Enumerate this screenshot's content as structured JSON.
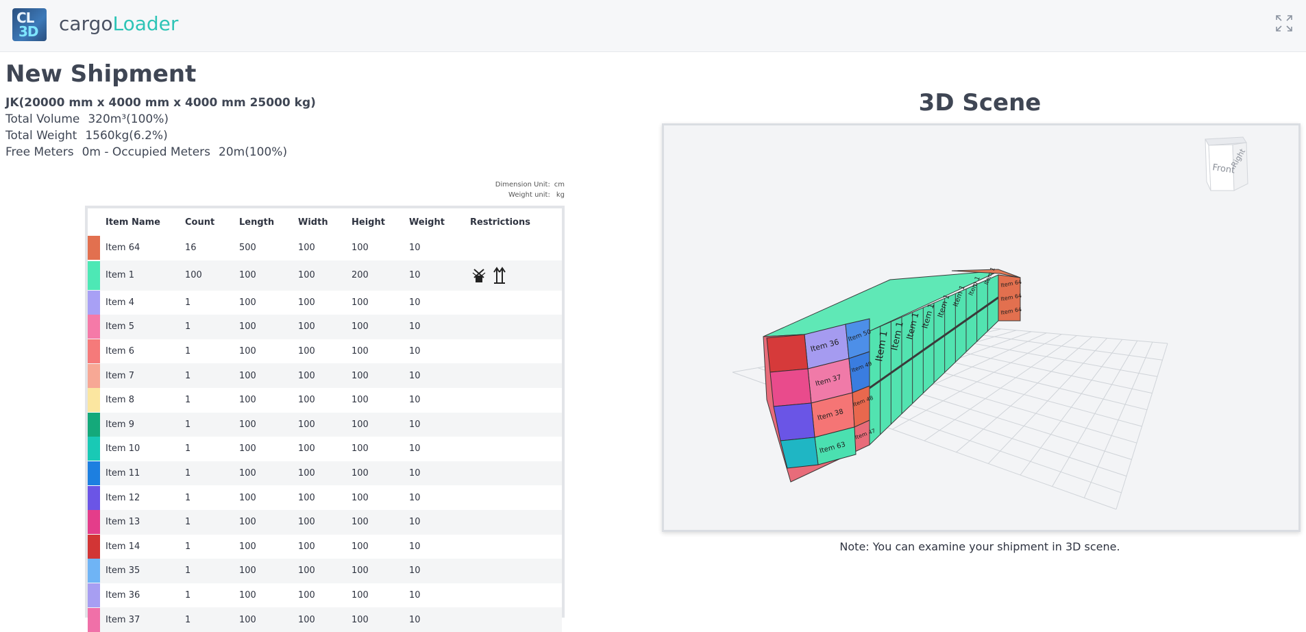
{
  "app": {
    "logo_text_top": "CL",
    "logo_text_bottom": "3D",
    "brand_part1": "cargo",
    "brand_part2": "Loader"
  },
  "shipment": {
    "title": "New Shipment",
    "container": "JK(20000 mm x 4000 mm x 4000 mm 25000 kg)",
    "total_volume_label": "Total Volume",
    "total_volume_value": "320m³(100%)",
    "total_weight_label": "Total Weight",
    "total_weight_value": "1560kg(6.2%)",
    "free_meters_label": "Free Meters",
    "free_meters_value": "0m",
    "occupied_label": "- Occupied Meters",
    "occupied_value": "20m(100%)"
  },
  "units": {
    "dimension_label": "Dimension Unit:",
    "dimension_value": "cm",
    "weight_label": "Weight unit:",
    "weight_value": "kg"
  },
  "table": {
    "headers": {
      "name": "Item Name",
      "count": "Count",
      "length": "Length",
      "width": "Width",
      "height": "Height",
      "weight": "Weight",
      "restrictions": "Restrictions"
    },
    "rows": [
      {
        "color": "#e2704f",
        "name": "Item 64",
        "count": "16",
        "length": "500",
        "width": "100",
        "height": "100",
        "weight": "10",
        "restrictions": []
      },
      {
        "color": "#4de8b5",
        "name": "Item 1",
        "count": "100",
        "length": "100",
        "width": "100",
        "height": "200",
        "weight": "10",
        "restrictions": [
          "no-stack-icon",
          "this-side-up-icon"
        ]
      },
      {
        "color": "#a8a0f5",
        "name": "Item 4",
        "count": "1",
        "length": "100",
        "width": "100",
        "height": "100",
        "weight": "10",
        "restrictions": []
      },
      {
        "color": "#f57aa8",
        "name": "Item 5",
        "count": "1",
        "length": "100",
        "width": "100",
        "height": "100",
        "weight": "10",
        "restrictions": []
      },
      {
        "color": "#f57a7a",
        "name": "Item 6",
        "count": "1",
        "length": "100",
        "width": "100",
        "height": "100",
        "weight": "10",
        "restrictions": []
      },
      {
        "color": "#f7a895",
        "name": "Item 7",
        "count": "1",
        "length": "100",
        "width": "100",
        "height": "100",
        "weight": "10",
        "restrictions": []
      },
      {
        "color": "#fbe6a0",
        "name": "Item 8",
        "count": "1",
        "length": "100",
        "width": "100",
        "height": "100",
        "weight": "10",
        "restrictions": []
      },
      {
        "color": "#14a97a",
        "name": "Item 9",
        "count": "1",
        "length": "100",
        "width": "100",
        "height": "100",
        "weight": "10",
        "restrictions": []
      },
      {
        "color": "#19c9b5",
        "name": "Item 10",
        "count": "1",
        "length": "100",
        "width": "100",
        "height": "100",
        "weight": "10",
        "restrictions": []
      },
      {
        "color": "#1d7fe0",
        "name": "Item 11",
        "count": "1",
        "length": "100",
        "width": "100",
        "height": "100",
        "weight": "10",
        "restrictions": []
      },
      {
        "color": "#6b55e6",
        "name": "Item 12",
        "count": "1",
        "length": "100",
        "width": "100",
        "height": "100",
        "weight": "10",
        "restrictions": []
      },
      {
        "color": "#e43d8a",
        "name": "Item 13",
        "count": "1",
        "length": "100",
        "width": "100",
        "height": "100",
        "weight": "10",
        "restrictions": []
      },
      {
        "color": "#d23535",
        "name": "Item 14",
        "count": "1",
        "length": "100",
        "width": "100",
        "height": "100",
        "weight": "10",
        "restrictions": []
      },
      {
        "color": "#6fb4f5",
        "name": "Item 35",
        "count": "1",
        "length": "100",
        "width": "100",
        "height": "100",
        "weight": "10",
        "restrictions": []
      },
      {
        "color": "#a79ef2",
        "name": "Item 36",
        "count": "1",
        "length": "100",
        "width": "100",
        "height": "100",
        "weight": "10",
        "restrictions": []
      },
      {
        "color": "#f070a8",
        "name": "Item 37",
        "count": "1",
        "length": "100",
        "width": "100",
        "height": "100",
        "weight": "10",
        "restrictions": []
      }
    ]
  },
  "scene": {
    "title": "3D Scene",
    "cube_front": "Front",
    "cube_right": "Right",
    "note": "Note: You can examine your shipment in 3D scene.",
    "box_labels": [
      "Item 36",
      "Item 50",
      "Item 49",
      "Item 37",
      "Item 48",
      "Item 38",
      "Item 47",
      "Item 63",
      "Item 1",
      "Item 64"
    ]
  }
}
